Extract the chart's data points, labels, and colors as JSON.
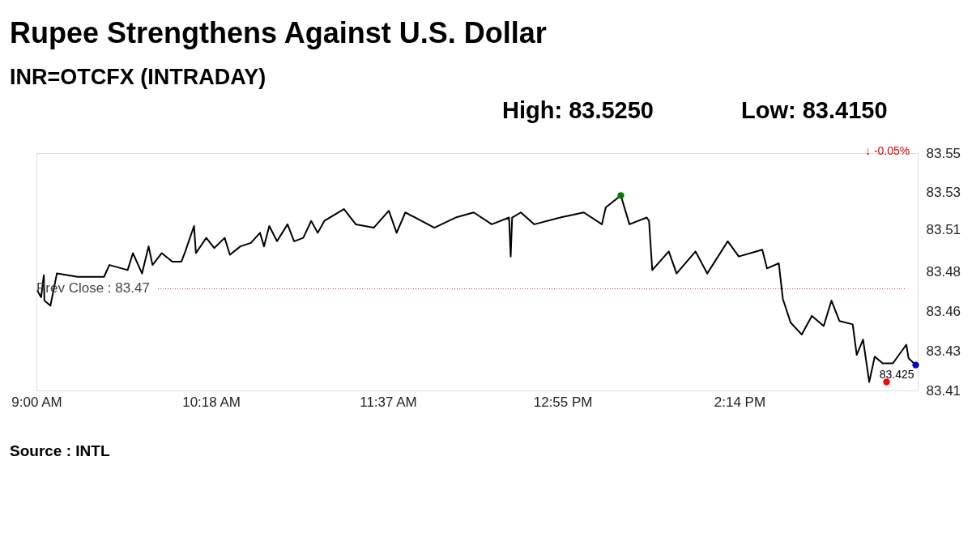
{
  "chart_data": {
    "type": "line",
    "title": "Rupee Strengthens Against U.S. Dollar",
    "subtitle": "INR=OTCFX (INTRADAY)",
    "xlim": [
      9,
      15.56
    ],
    "xticks": [
      {
        "value": 9,
        "label": "9:00 AM"
      },
      {
        "value": 10.3,
        "label": "10:18 AM"
      },
      {
        "value": 11.6167,
        "label": "11:37 AM"
      },
      {
        "value": 12.9167,
        "label": "12:55 PM"
      },
      {
        "value": 14.2333,
        "label": "2:14 PM"
      }
    ],
    "ylim": [
      83.41,
      83.55
    ],
    "yticks": [
      83.41,
      {
        "value": 83.4333,
        "label": "83.43"
      },
      {
        "value": 83.4567,
        "label": "83.46"
      },
      83.48,
      {
        "value": 83.505,
        "label": "83.51"
      },
      {
        "value": 83.5267,
        "label": "83.53"
      },
      83.55
    ],
    "grid": false,
    "series": [
      {
        "color": "#000000",
        "marker": "none",
        "line_style": "solid",
        "x": [
          9.006,
          9.035,
          9.055,
          9.059,
          9.104,
          9.152,
          9.308,
          9.503,
          9.543,
          9.679,
          9.718,
          9.786,
          9.835,
          9.864,
          9.933,
          10.011,
          10.079,
          10.108,
          10.173,
          10.187,
          10.264,
          10.323,
          10.401,
          10.44,
          10.518,
          10.596,
          10.664,
          10.694,
          10.733,
          10.791,
          10.869,
          10.918,
          10.986,
          11.045,
          11.094,
          11.143,
          11.289,
          11.377,
          11.511,
          11.623,
          11.681,
          11.746,
          11.962,
          12.12,
          12.255,
          12.389,
          12.518,
          12.53,
          12.541,
          12.606,
          12.706,
          12.899,
          13.074,
          13.209,
          13.238,
          13.35,
          13.414,
          13.543,
          13.56,
          13.584,
          13.707,
          13.765,
          13.906,
          13.993,
          14.146,
          14.228,
          14.403,
          14.438,
          14.526,
          14.556,
          14.614,
          14.696,
          14.772,
          14.86,
          14.918,
          14.977,
          15.076,
          15.106,
          15.153,
          15.199,
          15.24,
          15.299,
          15.375,
          15.475,
          15.492,
          15.545
        ],
        "values": [
          83.469,
          83.465,
          83.478,
          83.463,
          83.46,
          83.479,
          83.477,
          83.477,
          83.484,
          83.481,
          83.491,
          83.479,
          83.495,
          83.484,
          83.491,
          83.486,
          83.486,
          83.492,
          83.507,
          83.491,
          83.5,
          83.494,
          83.5,
          83.49,
          83.495,
          83.497,
          83.503,
          83.495,
          83.507,
          83.498,
          83.508,
          83.498,
          83.5,
          83.51,
          83.503,
          83.51,
          83.517,
          83.508,
          83.506,
          83.516,
          83.503,
          83.515,
          83.506,
          83.512,
          83.515,
          83.508,
          83.512,
          83.489,
          83.512,
          83.515,
          83.508,
          83.512,
          83.515,
          83.508,
          83.518,
          83.525,
          83.508,
          83.512,
          83.51,
          83.481,
          83.492,
          83.479,
          83.492,
          83.479,
          83.498,
          83.489,
          83.493,
          83.482,
          83.485,
          83.464,
          83.45,
          83.443,
          83.454,
          83.448,
          83.463,
          83.451,
          83.449,
          83.431,
          83.44,
          83.415,
          83.43,
          83.426,
          83.426,
          83.437,
          83.429,
          83.425
        ]
      },
      {
        "type": "scatter",
        "marker": "circle",
        "x": [
          13.35,
          15.328,
          15.545
        ],
        "values": [
          83.525,
          83.415,
          83.425
        ],
        "colors": [
          "#008000",
          "#ff0000",
          "#0000cc"
        ]
      }
    ],
    "ref_lines": [
      {
        "axis": "y",
        "value": 83.47,
        "label": "Prev Close : 83.47",
        "color": "#d62728",
        "line_style": "dotted"
      }
    ],
    "annotations": [
      "High: 83.5250",
      "Low: 83.4150",
      {
        "text": "83.425",
        "x": 15.545,
        "y": 83.425
      },
      "↓ -0.05%",
      "Source : INTL"
    ]
  }
}
